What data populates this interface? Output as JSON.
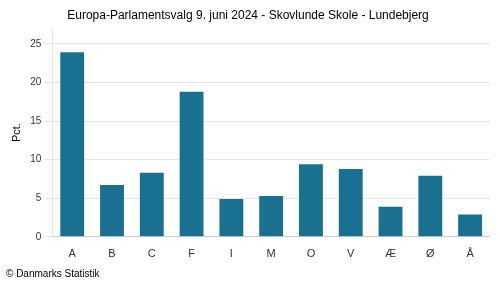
{
  "chart_data": {
    "type": "bar",
    "title": "Europa-Parlamentsvalg 9. juni 2024 - Skovlunde Skole - Lundebjerg",
    "categories": [
      "A",
      "B",
      "C",
      "F",
      "I",
      "M",
      "O",
      "V",
      "Æ",
      "Ø",
      "Å"
    ],
    "values": [
      23.9,
      6.7,
      8.3,
      18.8,
      4.9,
      5.3,
      9.4,
      8.8,
      3.9,
      7.9,
      2.9
    ],
    "color": "#1a7090",
    "ylabel": "Pct.",
    "ylim": [
      0,
      27
    ],
    "yticks": [
      0,
      5,
      10,
      15,
      20,
      25
    ],
    "grid": true,
    "annotations": [
      "© Danmarks Statistik"
    ]
  }
}
